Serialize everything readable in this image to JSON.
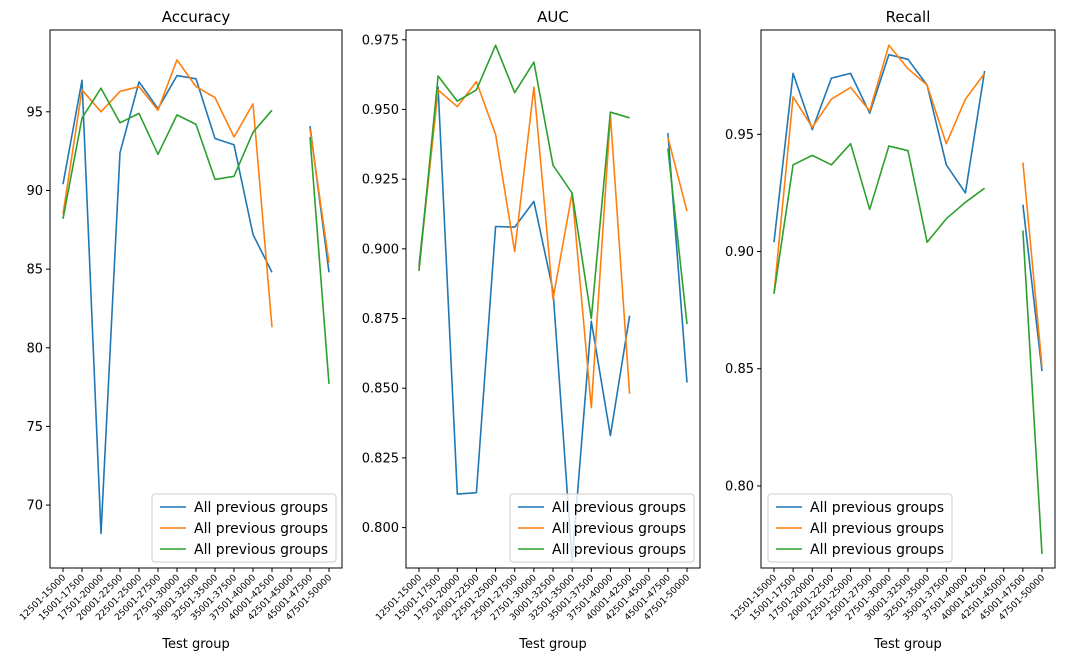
{
  "colors": {
    "c0": "#1f77b4",
    "c1": "#ff7f0e",
    "c2": "#2ca02c"
  },
  "chart_data": [
    {
      "type": "line",
      "title": "Accuracy",
      "xlabel": "Test group",
      "ylabel": "",
      "categories": [
        "12501-15000",
        "15001-17500",
        "17501-20000",
        "20001-22500",
        "22501-25000",
        "25001-27500",
        "27501-30000",
        "30001-32500",
        "32501-35000",
        "35001-37500",
        "37501-40000",
        "40001-42500",
        "42501-45000",
        "45001-47500",
        "47501-50000"
      ],
      "ylim": [
        66,
        100.2
      ],
      "yticks": [
        70,
        75,
        80,
        85,
        90,
        95
      ],
      "legend": "lower right",
      "series": [
        {
          "name": "All previous groups",
          "color": "#1f77b4",
          "values": [
            90.4,
            97.0,
            68.2,
            92.4,
            96.9,
            95.2,
            97.3,
            97.1,
            93.3,
            92.9,
            87.2,
            84.8,
            null,
            94.1,
            84.8
          ]
        },
        {
          "name": "All previous groups",
          "color": "#ff7f0e",
          "values": [
            88.5,
            96.4,
            95.0,
            96.3,
            96.6,
            95.1,
            98.3,
            96.6,
            95.9,
            93.4,
            95.5,
            81.3,
            null,
            93.9,
            85.4
          ]
        },
        {
          "name": "All previous groups",
          "color": "#2ca02c",
          "values": [
            88.2,
            94.6,
            96.5,
            94.3,
            94.9,
            92.3,
            94.8,
            94.2,
            90.7,
            90.9,
            93.7,
            95.1,
            null,
            93.4,
            77.7
          ]
        }
      ]
    },
    {
      "type": "line",
      "title": "AUC",
      "xlabel": "Test group",
      "ylabel": "",
      "categories": [
        "12501-15000",
        "15001-17500",
        "17501-20000",
        "20001-22500",
        "22501-25000",
        "25001-27500",
        "27501-30000",
        "30001-32500",
        "32501-35000",
        "35001-37500",
        "37501-40000",
        "40001-42500",
        "42501-45000",
        "45001-47500",
        "47501-50000"
      ],
      "ylim": [
        0.7855,
        0.9785
      ],
      "yticks": [
        0.8,
        0.825,
        0.85,
        0.875,
        0.9,
        0.925,
        0.95,
        0.975
      ],
      "ytick_labels": [
        "0.800",
        "0.825",
        "0.850",
        "0.875",
        "0.900",
        "0.925",
        "0.950",
        "0.975"
      ],
      "legend": "lower right",
      "series": [
        {
          "name": "All previous groups",
          "color": "#1f77b4",
          "values": [
            0.894,
            0.958,
            0.812,
            0.8125,
            0.908,
            0.9078,
            0.917,
            0.885,
            0.788,
            0.874,
            0.833,
            0.876,
            null,
            0.9415,
            0.852
          ]
        },
        {
          "name": "All previous groups",
          "color": "#ff7f0e",
          "values": [
            0.893,
            0.957,
            0.951,
            0.96,
            0.941,
            0.899,
            0.958,
            0.882,
            0.92,
            0.843,
            0.948,
            0.848,
            null,
            0.94,
            0.9135
          ]
        },
        {
          "name": "All previous groups",
          "color": "#2ca02c",
          "values": [
            0.892,
            0.962,
            0.953,
            0.957,
            0.973,
            0.956,
            0.967,
            0.93,
            0.92,
            0.875,
            0.949,
            0.947,
            null,
            0.936,
            0.873
          ]
        }
      ]
    },
    {
      "type": "line",
      "title": "Recall",
      "xlabel": "Test group",
      "ylabel": "",
      "categories": [
        "12501-15000",
        "15001-17500",
        "17501-20000",
        "20001-22500",
        "22501-25000",
        "25001-27500",
        "27501-30000",
        "30001-32500",
        "32501-35000",
        "35001-37500",
        "37501-40000",
        "40001-42500",
        "42501-45000",
        "45001-47500",
        "47501-50000"
      ],
      "ylim": [
        0.765,
        0.9945
      ],
      "yticks": [
        0.8,
        0.85,
        0.9,
        0.95
      ],
      "ytick_labels": [
        "0.80",
        "0.85",
        "0.90",
        "0.95"
      ],
      "legend": "lower left",
      "series": [
        {
          "name": "All previous groups",
          "color": "#1f77b4",
          "values": [
            0.904,
            0.976,
            0.952,
            0.974,
            0.976,
            0.959,
            0.984,
            0.982,
            0.971,
            0.937,
            0.925,
            0.977,
            null,
            0.92,
            0.849
          ]
        },
        {
          "name": "All previous groups",
          "color": "#ff7f0e",
          "values": [
            0.882,
            0.966,
            0.953,
            0.965,
            0.97,
            0.96,
            0.988,
            0.978,
            0.971,
            0.946,
            0.965,
            0.976,
            null,
            0.938,
            0.851
          ]
        },
        {
          "name": "All previous groups",
          "color": "#2ca02c",
          "values": [
            0.882,
            0.937,
            0.941,
            0.937,
            0.946,
            0.918,
            0.945,
            0.943,
            0.904,
            0.914,
            0.921,
            0.927,
            null,
            0.909,
            0.771
          ]
        }
      ]
    }
  ]
}
